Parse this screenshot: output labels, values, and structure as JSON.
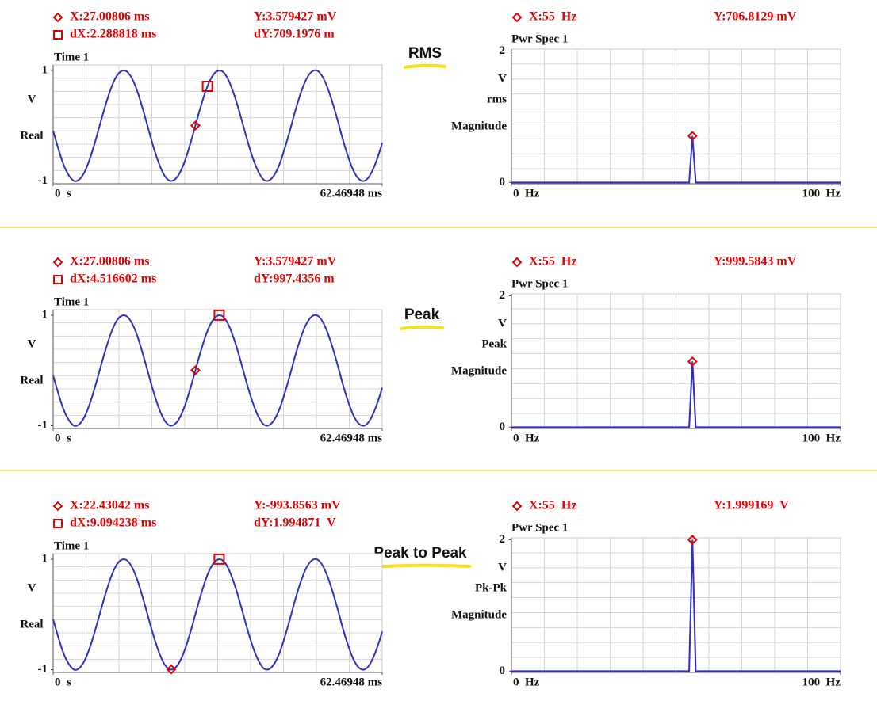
{
  "mode_labels": [
    "RMS",
    "Peak",
    "Peak to Peak"
  ],
  "chart_data": [
    {
      "type": "line",
      "title": "Time 1",
      "color": "#2f2fc0",
      "readouts": [
        [
          "X:27.00806 ms",
          "Y:3.579427 mV"
        ],
        [
          "dX:2.288818 ms",
          "dY:709.1976 m"
        ]
      ],
      "ylabel": [
        "V",
        "Real"
      ],
      "x": [
        0,
        1,
        2,
        3,
        4,
        5,
        6,
        7,
        8,
        9,
        10,
        11,
        12,
        13,
        14,
        15,
        16,
        17,
        18,
        19,
        20,
        21,
        22,
        23,
        24,
        25,
        26,
        27,
        28,
        29,
        30,
        31,
        32,
        33,
        34,
        35,
        36,
        37,
        38,
        39,
        40,
        41,
        42,
        43,
        44,
        45,
        46,
        47,
        48,
        49,
        50,
        51,
        52,
        53,
        54,
        55,
        56,
        57,
        58,
        59,
        60,
        61,
        62,
        62.46948
      ],
      "values": [
        -0.09,
        -0.42,
        -0.71,
        -0.9,
        -1.0,
        -0.97,
        -0.83,
        -0.59,
        -0.28,
        0.06,
        0.39,
        0.68,
        0.89,
        0.99,
        0.98,
        0.85,
        0.62,
        0.31,
        -0.03,
        -0.37,
        -0.66,
        -0.88,
        -0.99,
        -0.98,
        -0.86,
        -0.64,
        -0.34,
        0.0,
        0.34,
        0.64,
        0.86,
        0.98,
        0.99,
        0.88,
        0.66,
        0.37,
        0.03,
        -0.31,
        -0.61,
        -0.84,
        -0.98,
        -0.99,
        -0.89,
        -0.69,
        -0.4,
        -0.07,
        0.28,
        0.59,
        0.83,
        0.97,
        1.0,
        0.91,
        0.71,
        0.43,
        0.1,
        -0.25,
        -0.56,
        -0.81,
        -0.96,
        -1.0,
        -0.92,
        -0.73,
        -0.46,
        -0.31
      ],
      "markers": [
        {
          "shape": "diamond",
          "x": 27.00806,
          "y": 0.003579427
        },
        {
          "shape": "square",
          "x": 29.296878,
          "y": 0.712777
        }
      ],
      "xlim": [
        0,
        62.46948
      ],
      "xticks": [
        {
          "value": 0,
          "label": "0  s"
        },
        {
          "value": 62.46948,
          "label": "62.46948 ms"
        }
      ],
      "ylim": [
        -1.05,
        1.1
      ],
      "yticks": [
        1,
        -1
      ]
    },
    {
      "type": "line",
      "title": "Pwr Spec 1",
      "color": "#2f2fc0",
      "readouts": [
        [
          "X:55  Hz",
          "Y:706.8129 mV"
        ]
      ],
      "ylabel": [
        "V",
        "rms",
        "Magnitude"
      ],
      "x": [
        0,
        54,
        55,
        56,
        100
      ],
      "values": [
        0,
        0,
        0.7068129,
        0,
        0
      ],
      "markers": [
        {
          "shape": "diamond",
          "x": 55,
          "y": 0.7068129
        }
      ],
      "xlim": [
        0,
        100
      ],
      "xticks": [
        {
          "value": 0,
          "label": "0  Hz"
        },
        {
          "value": 100,
          "label": "100  Hz"
        }
      ],
      "ylim": [
        -0.02,
        2.03
      ],
      "yticks": [
        2,
        0
      ]
    },
    {
      "type": "line",
      "title": "Time 1",
      "color": "#2f2fc0",
      "readouts": [
        [
          "X:27.00806 ms",
          "Y:3.579427 mV"
        ],
        [
          "dX:4.516602 ms",
          "dY:997.4356 m"
        ]
      ],
      "ylabel": [
        "V",
        "Real"
      ],
      "x": [
        0,
        1,
        2,
        3,
        4,
        5,
        6,
        7,
        8,
        9,
        10,
        11,
        12,
        13,
        14,
        15,
        16,
        17,
        18,
        19,
        20,
        21,
        22,
        23,
        24,
        25,
        26,
        27,
        28,
        29,
        30,
        31,
        32,
        33,
        34,
        35,
        36,
        37,
        38,
        39,
        40,
        41,
        42,
        43,
        44,
        45,
        46,
        47,
        48,
        49,
        50,
        51,
        52,
        53,
        54,
        55,
        56,
        57,
        58,
        59,
        60,
        61,
        62,
        62.46948
      ],
      "values": [
        -0.09,
        -0.42,
        -0.71,
        -0.9,
        -1.0,
        -0.97,
        -0.83,
        -0.59,
        -0.28,
        0.06,
        0.39,
        0.68,
        0.89,
        0.99,
        0.98,
        0.85,
        0.62,
        0.31,
        -0.03,
        -0.37,
        -0.66,
        -0.88,
        -0.99,
        -0.98,
        -0.86,
        -0.64,
        -0.34,
        0.0,
        0.34,
        0.64,
        0.86,
        0.98,
        0.99,
        0.88,
        0.66,
        0.37,
        0.03,
        -0.31,
        -0.61,
        -0.84,
        -0.98,
        -0.99,
        -0.89,
        -0.69,
        -0.4,
        -0.07,
        0.28,
        0.59,
        0.83,
        0.97,
        1.0,
        0.91,
        0.71,
        0.43,
        0.1,
        -0.25,
        -0.56,
        -0.81,
        -0.96,
        -1.0,
        -0.92,
        -0.73,
        -0.46,
        -0.31
      ],
      "markers": [
        {
          "shape": "diamond",
          "x": 27.00806,
          "y": 0.003579427
        },
        {
          "shape": "square",
          "x": 31.524662,
          "y": 1.001015
        }
      ],
      "xlim": [
        0,
        62.46948
      ],
      "xticks": [
        {
          "value": 0,
          "label": "0  s"
        },
        {
          "value": 62.46948,
          "label": "62.46948 ms"
        }
      ],
      "ylim": [
        -1.05,
        1.1
      ],
      "yticks": [
        1,
        -1
      ]
    },
    {
      "type": "line",
      "title": "Pwr Spec 1",
      "color": "#2f2fc0",
      "readouts": [
        [
          "X:55  Hz",
          "Y:999.5843 mV"
        ]
      ],
      "ylabel": [
        "V",
        "Peak",
        "Magnitude"
      ],
      "x": [
        0,
        54,
        55,
        56,
        100
      ],
      "values": [
        0,
        0,
        0.9995843,
        0,
        0
      ],
      "markers": [
        {
          "shape": "diamond",
          "x": 55,
          "y": 0.9995843
        }
      ],
      "xlim": [
        0,
        100
      ],
      "xticks": [
        {
          "value": 0,
          "label": "0  Hz"
        },
        {
          "value": 100,
          "label": "100  Hz"
        }
      ],
      "ylim": [
        -0.02,
        2.03
      ],
      "yticks": [
        2,
        0
      ]
    },
    {
      "type": "line",
      "title": "Time 1",
      "color": "#2f2fc0",
      "readouts": [
        [
          "X:22.43042 ms",
          "Y:-993.8563 mV"
        ],
        [
          "dX:9.094238 ms",
          "dY:1.994871  V"
        ]
      ],
      "ylabel": [
        "V",
        "Real"
      ],
      "x": [
        0,
        1,
        2,
        3,
        4,
        5,
        6,
        7,
        8,
        9,
        10,
        11,
        12,
        13,
        14,
        15,
        16,
        17,
        18,
        19,
        20,
        21,
        22,
        23,
        24,
        25,
        26,
        27,
        28,
        29,
        30,
        31,
        32,
        33,
        34,
        35,
        36,
        37,
        38,
        39,
        40,
        41,
        42,
        43,
        44,
        45,
        46,
        47,
        48,
        49,
        50,
        51,
        52,
        53,
        54,
        55,
        56,
        57,
        58,
        59,
        60,
        61,
        62,
        62.46948
      ],
      "values": [
        -0.09,
        -0.42,
        -0.71,
        -0.9,
        -1.0,
        -0.97,
        -0.83,
        -0.59,
        -0.28,
        0.06,
        0.39,
        0.68,
        0.89,
        0.99,
        0.98,
        0.85,
        0.62,
        0.31,
        -0.03,
        -0.37,
        -0.66,
        -0.88,
        -0.99,
        -0.98,
        -0.86,
        -0.64,
        -0.34,
        0.0,
        0.34,
        0.64,
        0.86,
        0.98,
        0.99,
        0.88,
        0.66,
        0.37,
        0.03,
        -0.31,
        -0.61,
        -0.84,
        -0.98,
        -0.99,
        -0.89,
        -0.69,
        -0.4,
        -0.07,
        0.28,
        0.59,
        0.83,
        0.97,
        1.0,
        0.91,
        0.71,
        0.43,
        0.1,
        -0.25,
        -0.56,
        -0.81,
        -0.96,
        -1.0,
        -0.92,
        -0.73,
        -0.46,
        -0.31
      ],
      "markers": [
        {
          "shape": "diamond",
          "x": 22.43042,
          "y": -0.9938563
        },
        {
          "shape": "square",
          "x": 31.524658,
          "y": 1.0010147
        }
      ],
      "xlim": [
        0,
        62.46948
      ],
      "xticks": [
        {
          "value": 0,
          "label": "0  s"
        },
        {
          "value": 62.46948,
          "label": "62.46948 ms"
        }
      ],
      "ylim": [
        -1.05,
        1.1
      ],
      "yticks": [
        1,
        -1
      ]
    },
    {
      "type": "line",
      "title": "Pwr Spec 1",
      "color": "#2f2fc0",
      "readouts": [
        [
          "X:55  Hz",
          "Y:1.999169  V"
        ]
      ],
      "ylabel": [
        "V",
        "Pk-Pk",
        "Magnitude"
      ],
      "x": [
        0,
        54,
        55,
        56,
        100
      ],
      "values": [
        0,
        0,
        1.999169,
        0,
        0
      ],
      "markers": [
        {
          "shape": "diamond",
          "x": 55,
          "y": 1.999169
        }
      ],
      "xlim": [
        0,
        100
      ],
      "xticks": [
        {
          "value": 0,
          "label": "0  Hz"
        },
        {
          "value": 100,
          "label": "100  Hz"
        }
      ],
      "ylim": [
        -0.02,
        2.03
      ],
      "yticks": [
        2,
        0
      ]
    }
  ]
}
